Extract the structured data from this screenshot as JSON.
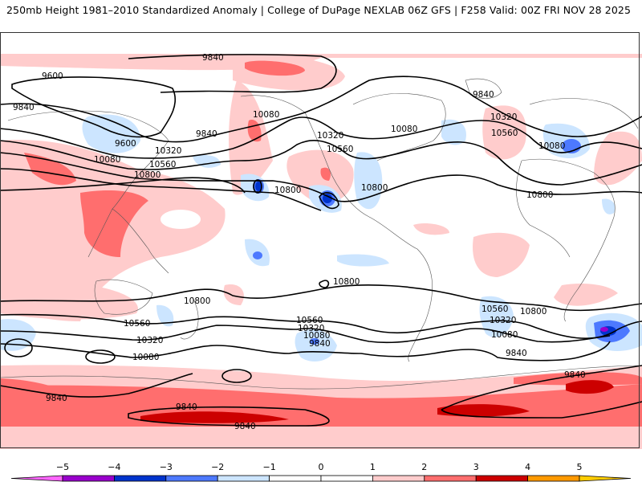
{
  "header": {
    "title_left": "250mb Height 1981–2010 Standardized Anomaly | College of DuPage NEXLAB",
    "title_right": "06Z GFS | F258 Valid: 00Z FRI NOV 28 2025"
  },
  "map": {
    "projection": "global cylindrical",
    "field": "250mb geopotential height (m) contours with standardized anomaly shading",
    "contour_labels": [
      {
        "id": "c1",
        "text": "9840"
      },
      {
        "id": "c2",
        "text": "9600"
      },
      {
        "id": "c3",
        "text": "9840"
      },
      {
        "id": "c4",
        "text": "9600"
      },
      {
        "id": "c5",
        "text": "10320"
      },
      {
        "id": "c6",
        "text": "10080"
      },
      {
        "id": "c7",
        "text": "10560"
      },
      {
        "id": "c8",
        "text": "10800"
      },
      {
        "id": "c9",
        "text": "9840"
      },
      {
        "id": "c10",
        "text": "10080"
      },
      {
        "id": "c11",
        "text": "10320"
      },
      {
        "id": "c12",
        "text": "10560"
      },
      {
        "id": "c13",
        "text": "10080"
      },
      {
        "id": "c14",
        "text": "10800"
      },
      {
        "id": "c15",
        "text": "10800"
      },
      {
        "id": "c16",
        "text": "9840"
      },
      {
        "id": "c17",
        "text": "10320"
      },
      {
        "id": "c18",
        "text": "10560"
      },
      {
        "id": "c19",
        "text": "10080"
      },
      {
        "id": "c20",
        "text": "10800"
      },
      {
        "id": "c21",
        "text": "10800"
      },
      {
        "id": "c22",
        "text": "10800"
      },
      {
        "id": "c23",
        "text": "10560"
      },
      {
        "id": "c24",
        "text": "10320"
      },
      {
        "id": "c25",
        "text": "10080"
      },
      {
        "id": "c26",
        "text": "10560"
      },
      {
        "id": "c27",
        "text": "10320"
      },
      {
        "id": "c28",
        "text": "10080"
      },
      {
        "id": "c29",
        "text": "9840"
      },
      {
        "id": "c30",
        "text": "10560"
      },
      {
        "id": "c31",
        "text": "10320"
      },
      {
        "id": "c32",
        "text": "10080"
      },
      {
        "id": "c33",
        "text": "10800"
      },
      {
        "id": "c34",
        "text": "9840"
      },
      {
        "id": "c35",
        "text": "9840"
      },
      {
        "id": "c36",
        "text": "9840"
      },
      {
        "id": "c37",
        "text": "9840"
      },
      {
        "id": "c38",
        "text": "9840"
      }
    ]
  },
  "colorbar": {
    "ticks": [
      "-5",
      "-4",
      "-3",
      "-2",
      "-1",
      "0",
      "1",
      "2",
      "3",
      "4",
      "5"
    ],
    "bins": [
      {
        "range": "< -5",
        "color": "#ff66ff"
      },
      {
        "range": "-5 to -4",
        "color": "#9900cc"
      },
      {
        "range": "-4 to -3",
        "color": "#0033cc"
      },
      {
        "range": "-3 to -2",
        "color": "#4d79ff"
      },
      {
        "range": "-2 to -1",
        "color": "#cce5ff"
      },
      {
        "range": "-1 to 0",
        "color": "#ffffff"
      },
      {
        "range": "0 to 1",
        "color": "#ffffff"
      },
      {
        "range": "1 to 2",
        "color": "#ffcccc"
      },
      {
        "range": "2 to 3",
        "color": "#ff6e6e"
      },
      {
        "range": "3 to 4",
        "color": "#cc0000"
      },
      {
        "range": "4 to 5",
        "color": "#ff9900"
      },
      {
        "range": "> 5",
        "color": "#ffcc00"
      }
    ]
  }
}
